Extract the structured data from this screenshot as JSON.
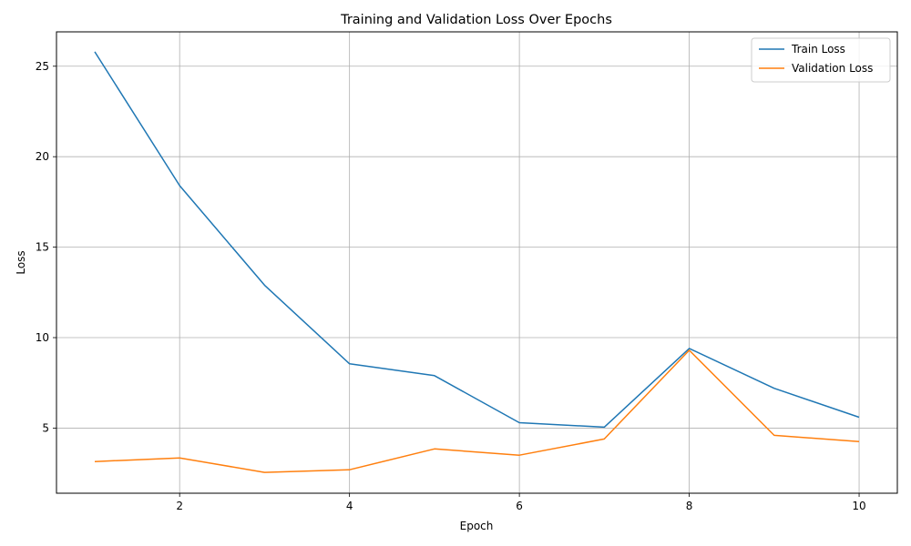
{
  "chart_data": {
    "type": "line",
    "title": "Training and Validation Loss Over Epochs",
    "xlabel": "Epoch",
    "ylabel": "Loss",
    "x": [
      1,
      2,
      3,
      4,
      5,
      6,
      7,
      8,
      9,
      10
    ],
    "xlim": [
      0.55,
      10.45
    ],
    "ylim": [
      1.4,
      26.9
    ],
    "xticks": [
      2,
      4,
      6,
      8,
      10
    ],
    "yticks": [
      5,
      10,
      15,
      20,
      25
    ],
    "grid": true,
    "legend_position": "top-right",
    "series": [
      {
        "name": "Train Loss",
        "color": "#1f77b4",
        "values": [
          25.8,
          18.4,
          12.9,
          8.55,
          7.9,
          5.3,
          5.05,
          9.4,
          7.2,
          5.6
        ]
      },
      {
        "name": "Validation Loss",
        "color": "#ff7f0e",
        "values": [
          3.15,
          3.35,
          2.55,
          2.7,
          3.85,
          3.5,
          4.4,
          9.3,
          4.6,
          4.25
        ]
      }
    ]
  }
}
